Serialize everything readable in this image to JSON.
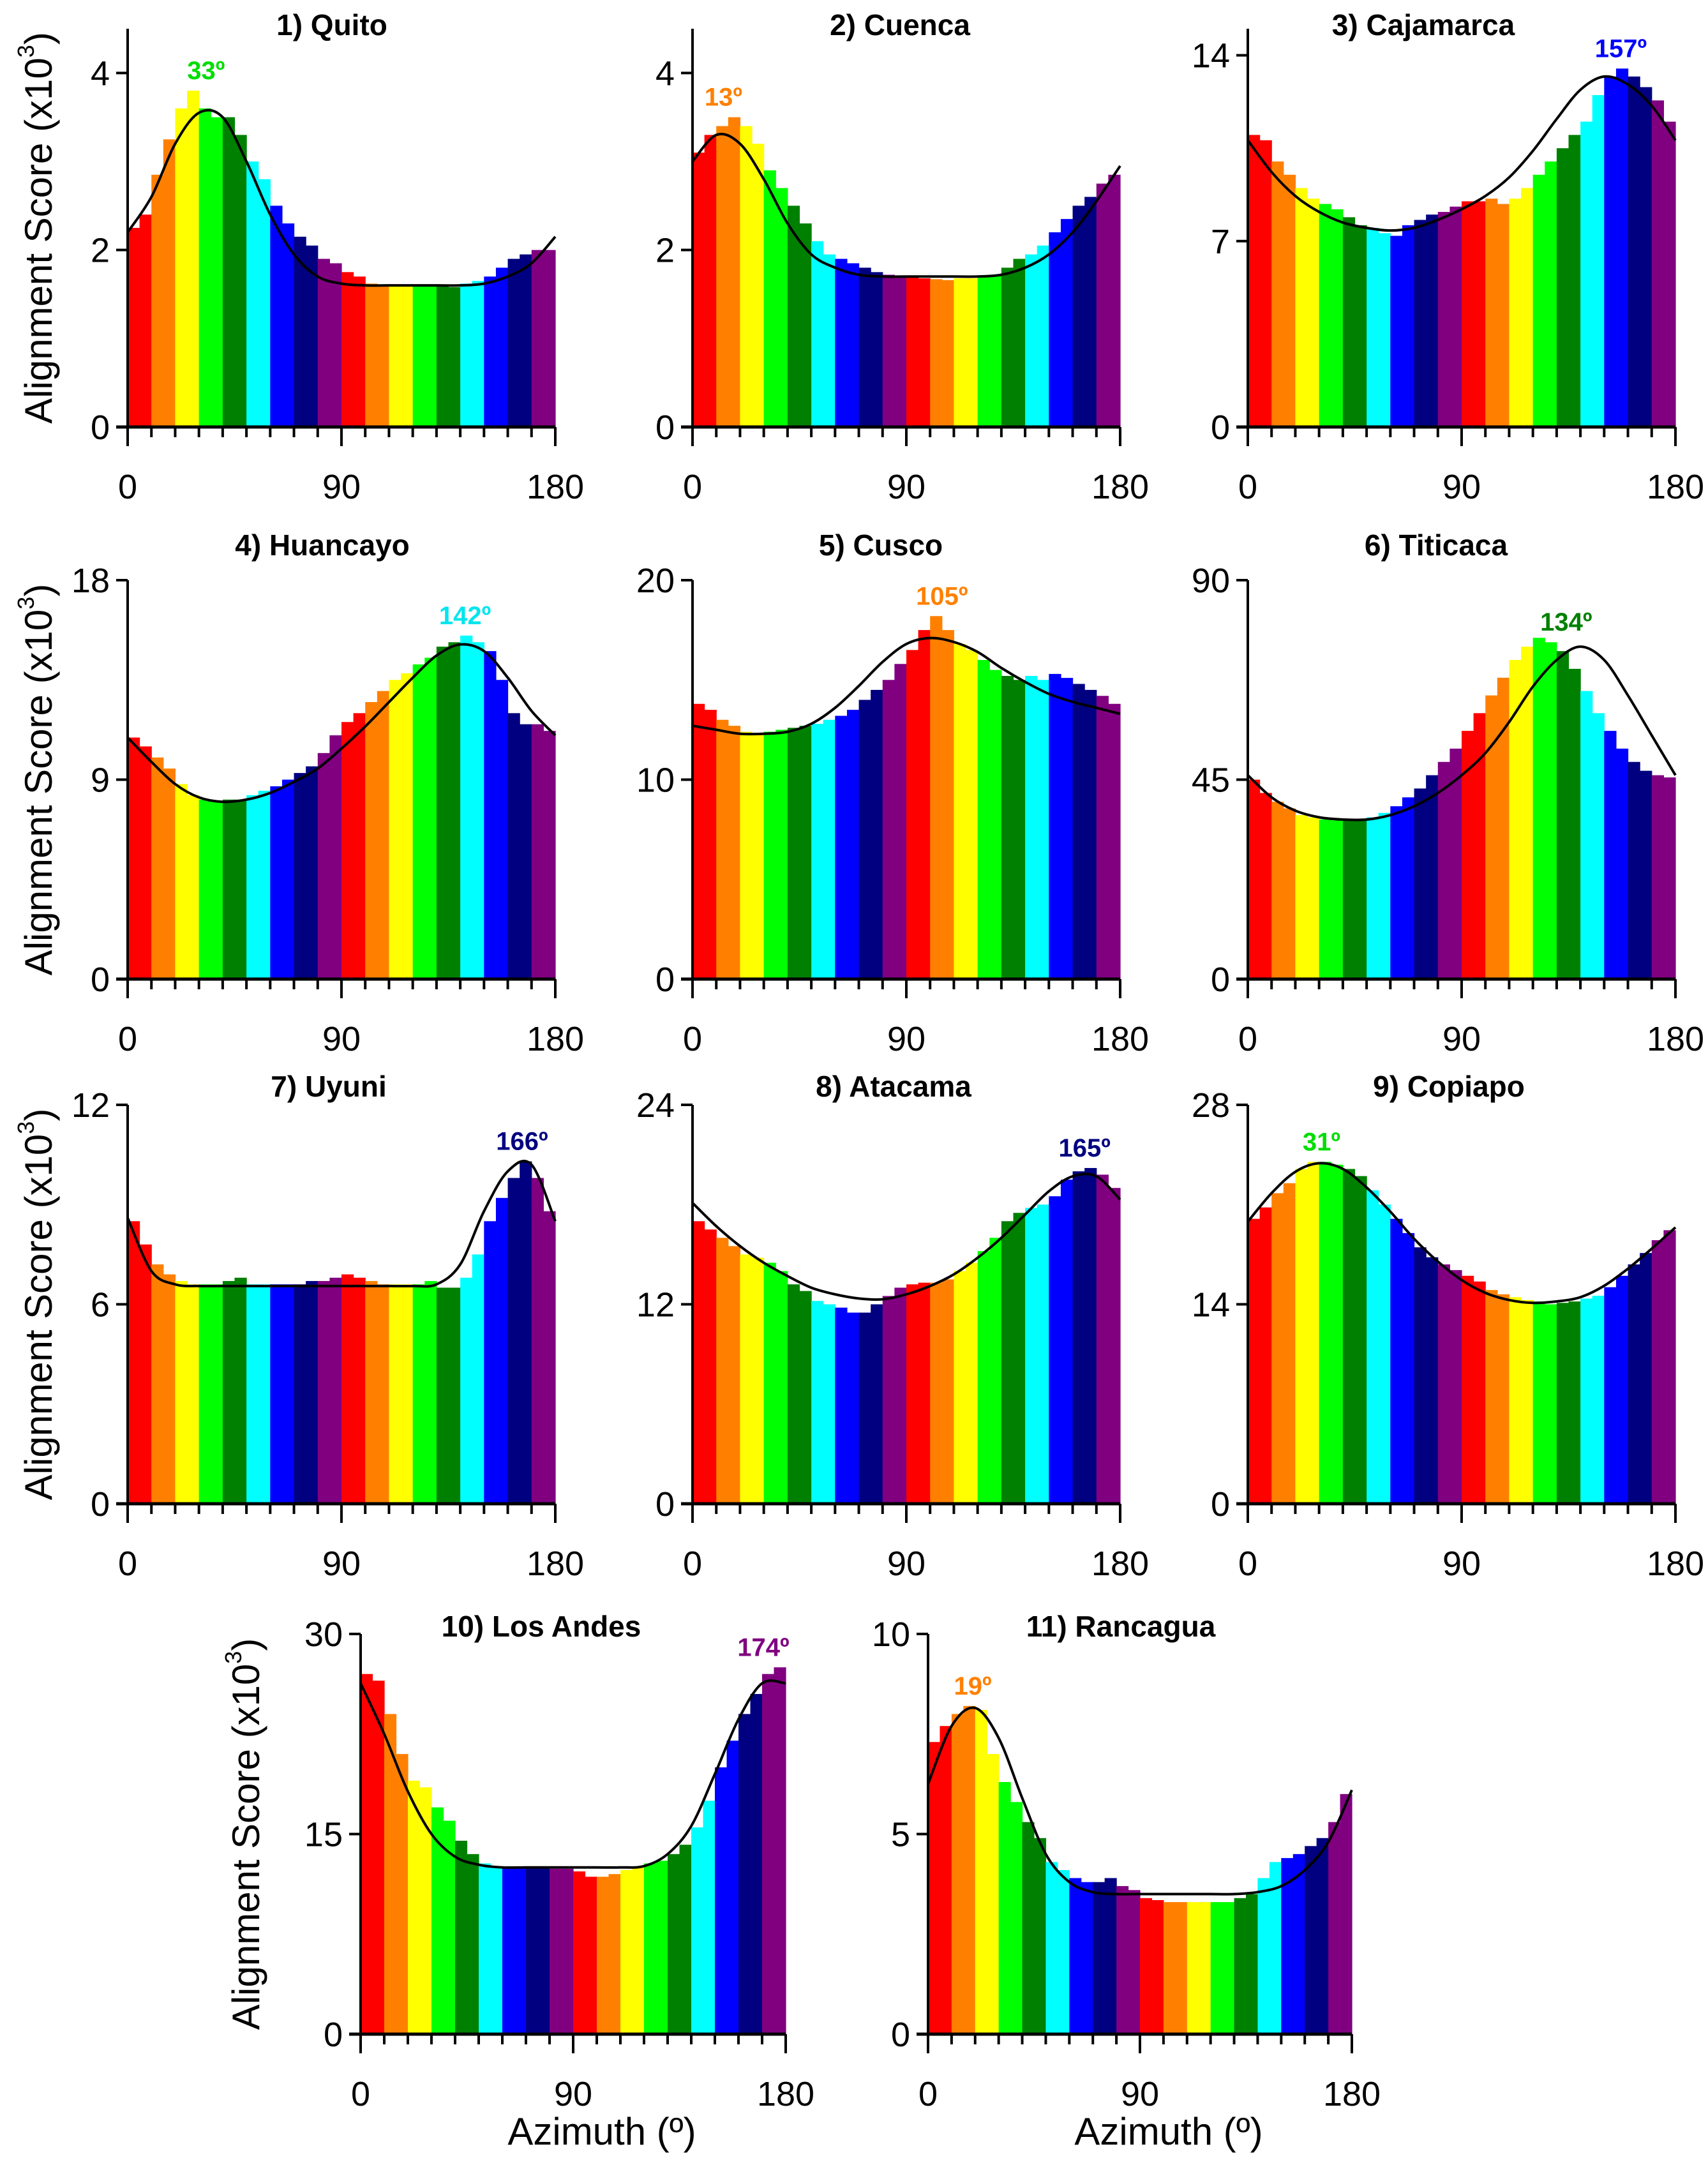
{
  "chart_data": {
    "type": "bar",
    "y_axis_title": {
      "prefix": "Alignment Score (x10",
      "exponent": "3",
      "suffix": ")"
    },
    "x_axis_title": "Azimuth (º)",
    "x_range": [
      0,
      180
    ],
    "x_ticks": [
      "0",
      "90",
      "180"
    ],
    "bin_width_deg": 5,
    "color_band_width_deg": 10,
    "band_colors": [
      "#ff0000",
      "#ff8000",
      "#ffff00",
      "#00ff00",
      "#008000",
      "#00ffff",
      "#0000ff",
      "#000080",
      "#800080"
    ],
    "fit_line_x": [
      0,
      10,
      20,
      30,
      40,
      50,
      60,
      70,
      80,
      90,
      100,
      110,
      120,
      130,
      140,
      150,
      160,
      170,
      180
    ],
    "panels": [
      {
        "title": "1) Quito",
        "peak_label": "33º",
        "peak_deg": 33,
        "peak_color": "#00dd00",
        "ylim": [
          0,
          4.5
        ],
        "yticks": [
          "0",
          "2",
          "4"
        ],
        "ytick_values": [
          0,
          2,
          4
        ],
        "bars": [
          2.25,
          2.4,
          2.85,
          3.25,
          3.6,
          3.8,
          3.6,
          3.5,
          3.5,
          3.3,
          3.0,
          2.8,
          2.5,
          2.3,
          2.15,
          2.05,
          1.9,
          1.85,
          1.75,
          1.7,
          1.62,
          1.6,
          1.6,
          1.6,
          1.6,
          1.6,
          1.6,
          1.58,
          1.62,
          1.65,
          1.7,
          1.8,
          1.9,
          1.95,
          2.0,
          2.0
        ],
        "fit": [
          2.2,
          2.6,
          3.2,
          3.55,
          3.5,
          3.0,
          2.4,
          1.95,
          1.7,
          1.62,
          1.6,
          1.6,
          1.6,
          1.6,
          1.6,
          1.62,
          1.7,
          1.85,
          2.15
        ]
      },
      {
        "title": "2) Cuenca",
        "peak_label": "13º",
        "peak_deg": 13,
        "peak_color": "#ff8000",
        "ylim": [
          0,
          4.5
        ],
        "yticks": [
          "0",
          "2",
          "4"
        ],
        "ytick_values": [
          0,
          2,
          4
        ],
        "bars": [
          3.1,
          3.3,
          3.4,
          3.5,
          3.4,
          3.2,
          2.9,
          2.7,
          2.5,
          2.3,
          2.1,
          1.95,
          1.9,
          1.85,
          1.8,
          1.75,
          1.72,
          1.7,
          1.7,
          1.68,
          1.67,
          1.66,
          1.68,
          1.68,
          1.7,
          1.72,
          1.8,
          1.9,
          1.95,
          2.05,
          2.2,
          2.35,
          2.5,
          2.6,
          2.75,
          2.85
        ],
        "fit": [
          3.0,
          3.3,
          3.2,
          2.8,
          2.3,
          1.95,
          1.8,
          1.72,
          1.7,
          1.7,
          1.7,
          1.7,
          1.7,
          1.72,
          1.8,
          1.95,
          2.2,
          2.55,
          2.95
        ]
      },
      {
        "title": "3) Cajamarca",
        "peak_label": "157º",
        "peak_deg": 157,
        "peak_color": "#0000ff",
        "ylim": [
          0,
          15
        ],
        "yticks": [
          "0",
          "7",
          "14"
        ],
        "ytick_values": [
          0,
          7,
          14
        ],
        "bars": [
          11,
          10.8,
          10,
          9.5,
          9.0,
          8.6,
          8.4,
          8.2,
          7.9,
          7.6,
          7.5,
          7.3,
          7.2,
          7.6,
          7.8,
          8.0,
          8.1,
          8.3,
          8.5,
          8.5,
          8.6,
          8.4,
          8.6,
          9.0,
          9.5,
          10.0,
          10.5,
          11,
          11.5,
          12.5,
          13.2,
          13.5,
          13.2,
          12.8,
          12.3,
          11.5
        ],
        "fit": [
          10.8,
          9.6,
          8.7,
          8.1,
          7.7,
          7.5,
          7.4,
          7.5,
          7.8,
          8.2,
          8.7,
          9.4,
          10.4,
          11.6,
          12.7,
          13.2,
          12.9,
          12.1,
          10.8
        ]
      },
      {
        "title": "4) Huancayo",
        "peak_label": "142º",
        "peak_deg": 142,
        "peak_color": "#00e5ee",
        "ylim": [
          0,
          18
        ],
        "yticks": [
          "0",
          "9",
          "18"
        ],
        "ytick_values": [
          0,
          9,
          18
        ],
        "bars": [
          10.9,
          10.5,
          10.0,
          9.5,
          8.8,
          8.3,
          8.1,
          8.0,
          8.1,
          8.1,
          8.3,
          8.5,
          8.7,
          9.0,
          9.3,
          9.6,
          10.2,
          11.0,
          11.6,
          12.0,
          12.5,
          13.0,
          13.5,
          13.8,
          14.2,
          14.5,
          15.0,
          15.2,
          15.5,
          15.2,
          14.8,
          13.5,
          12.0,
          11.5,
          11.5,
          11.2
        ],
        "fit": [
          10.9,
          9.8,
          8.8,
          8.2,
          8.0,
          8.1,
          8.4,
          8.9,
          9.5,
          10.4,
          11.4,
          12.5,
          13.6,
          14.6,
          15.1,
          14.8,
          13.6,
          12.1,
          11.0
        ]
      },
      {
        "title": "5) Cusco",
        "peak_label": "105º",
        "peak_deg": 105,
        "peak_color": "#ff8000",
        "ylim": [
          0,
          20
        ],
        "yticks": [
          "0",
          "10",
          "20"
        ],
        "ytick_values": [
          0,
          10,
          20
        ],
        "bars": [
          13.8,
          13.5,
          13.0,
          12.7,
          12.4,
          12.3,
          12.4,
          12.5,
          12.6,
          12.7,
          12.8,
          13.0,
          13.2,
          13.5,
          14.0,
          14.5,
          15.0,
          15.8,
          16.5,
          17.5,
          18.2,
          17.5,
          16.8,
          16.5,
          16.0,
          15.5,
          15.2,
          15.0,
          15.2,
          15.0,
          15.3,
          15.1,
          14.8,
          14.5,
          14.2,
          13.8
        ],
        "fit": [
          12.7,
          12.5,
          12.3,
          12.3,
          12.4,
          12.8,
          13.6,
          14.7,
          15.9,
          16.8,
          17.1,
          16.9,
          16.4,
          15.6,
          14.9,
          14.3,
          13.9,
          13.6,
          13.3
        ]
      },
      {
        "title": "6) Titicaca",
        "peak_label": "134º",
        "peak_deg": 134,
        "peak_color": "#008000",
        "ylim": [
          0,
          90
        ],
        "yticks": [
          "0",
          "45",
          "90"
        ],
        "ytick_values": [
          0,
          45,
          90
        ],
        "bars": [
          45,
          42,
          40,
          38.5,
          37,
          36.5,
          36,
          35.8,
          35.8,
          36,
          36.5,
          37.5,
          39,
          41,
          43,
          46,
          49,
          52,
          56,
          60,
          64,
          68,
          72,
          75,
          77,
          76,
          74,
          70,
          65,
          60,
          56,
          52,
          49,
          47,
          46,
          45.5
        ],
        "fit": [
          46,
          41,
          38,
          36.5,
          36,
          36,
          37,
          39,
          42,
          46,
          51,
          58,
          66,
          72,
          75,
          72,
          64,
          55,
          46
        ]
      },
      {
        "title": "7) Uyuni",
        "peak_label": "166º",
        "peak_deg": 166,
        "peak_color": "#000080",
        "ylim": [
          0,
          12
        ],
        "yticks": [
          "0",
          "6",
          "12"
        ],
        "ytick_values": [
          0,
          6,
          12
        ],
        "bars": [
          8.5,
          7.8,
          7.2,
          6.9,
          6.7,
          6.6,
          6.6,
          6.6,
          6.7,
          6.8,
          6.6,
          6.6,
          6.6,
          6.6,
          6.6,
          6.7,
          6.7,
          6.8,
          6.9,
          6.8,
          6.7,
          6.6,
          6.6,
          6.6,
          6.6,
          6.7,
          6.5,
          6.5,
          6.8,
          7.5,
          8.5,
          9.2,
          9.8,
          10.3,
          9.8,
          8.8
        ],
        "fit": [
          8.6,
          7.0,
          6.6,
          6.55,
          6.55,
          6.55,
          6.55,
          6.55,
          6.55,
          6.55,
          6.55,
          6.55,
          6.55,
          6.6,
          7.2,
          8.8,
          10.0,
          10.2,
          8.5
        ]
      },
      {
        "title": "8) Atacama",
        "peak_label": "165º",
        "peak_deg": 165,
        "peak_color": "#000080",
        "ylim": [
          0,
          24
        ],
        "yticks": [
          "0",
          "12",
          "24"
        ],
        "ytick_values": [
          0,
          12,
          24
        ],
        "bars": [
          17,
          16.5,
          16,
          15.5,
          15,
          14.8,
          14.5,
          14,
          13.2,
          12.8,
          12.2,
          12,
          11.8,
          11.5,
          11.5,
          12,
          12.5,
          13,
          13.2,
          13.3,
          13.3,
          13.5,
          14,
          14.5,
          15.2,
          16,
          17,
          17.5,
          17.8,
          18,
          18.5,
          19.5,
          20,
          20.2,
          19.8,
          19
        ],
        "fit": [
          18.1,
          16.7,
          15.5,
          14.5,
          13.7,
          13.0,
          12.6,
          12.35,
          12.3,
          12.6,
          13.1,
          13.8,
          14.8,
          16.0,
          17.4,
          18.8,
          19.7,
          19.7,
          18.3
        ]
      },
      {
        "title": "9) Copiapo",
        "peak_label": "31º",
        "peak_deg": 31,
        "peak_color": "#00dd00",
        "ylim": [
          0,
          28
        ],
        "yticks": [
          "0",
          "14",
          "28"
        ],
        "ytick_values": [
          0,
          14,
          28
        ],
        "bars": [
          20,
          20.8,
          21.8,
          22.5,
          23.5,
          24,
          24,
          23.8,
          23.5,
          23,
          22,
          21,
          20,
          19,
          18,
          17.3,
          16.8,
          16.4,
          16.0,
          15.6,
          15,
          14.7,
          14.5,
          14.3,
          14.2,
          14.0,
          14.1,
          14.2,
          14.4,
          14.6,
          15.2,
          16,
          16.8,
          17.6,
          18.5,
          19.2
        ],
        "fit": [
          19.8,
          21.8,
          23.3,
          23.9,
          23.5,
          22.2,
          20.5,
          18.6,
          17.0,
          15.7,
          14.8,
          14.3,
          14.1,
          14.2,
          14.5,
          15.3,
          16.5,
          17.9,
          19.4
        ]
      },
      {
        "title": "10) Los Andes",
        "peak_label": "174º",
        "peak_deg": 174,
        "peak_color": "#800080",
        "ylim": [
          0,
          30
        ],
        "yticks": [
          "0",
          "15",
          "30"
        ],
        "ytick_values": [
          0,
          15,
          30
        ],
        "bars": [
          27,
          26.5,
          24,
          21,
          19,
          18.5,
          17,
          16,
          14.5,
          13.5,
          12.8,
          12.5,
          12.5,
          12.5,
          12.5,
          12.5,
          12.4,
          12.4,
          12.2,
          11.8,
          11.8,
          12,
          12.3,
          12.5,
          12.8,
          13,
          13.5,
          14.2,
          15.5,
          17.5,
          20,
          22,
          24,
          25.5,
          27,
          27.5
        ],
        "fit": [
          26.3,
          22.5,
          18.2,
          15.0,
          13.3,
          12.7,
          12.5,
          12.5,
          12.5,
          12.5,
          12.5,
          12.5,
          12.6,
          13.5,
          15.6,
          19.5,
          23.6,
          26.3,
          26.3
        ]
      },
      {
        "title": "11) Rancagua",
        "peak_label": "19º",
        "peak_deg": 19,
        "peak_color": "#ff8000",
        "ylim": [
          0,
          10
        ],
        "yticks": [
          "0",
          "5",
          "10"
        ],
        "ytick_values": [
          0,
          5,
          10
        ],
        "bars": [
          7.3,
          7.7,
          8.0,
          8.2,
          8.1,
          7.0,
          6.3,
          5.8,
          5.3,
          4.9,
          4.3,
          4.1,
          3.9,
          3.8,
          3.8,
          3.9,
          3.7,
          3.6,
          3.4,
          3.35,
          3.3,
          3.3,
          3.3,
          3.3,
          3.3,
          3.3,
          3.4,
          3.5,
          3.9,
          4.3,
          4.4,
          4.5,
          4.7,
          4.9,
          5.3,
          6.0
        ],
        "fit": [
          6.25,
          7.7,
          8.15,
          7.4,
          5.9,
          4.5,
          3.8,
          3.55,
          3.5,
          3.5,
          3.5,
          3.5,
          3.5,
          3.5,
          3.55,
          3.7,
          4.1,
          4.8,
          6.1
        ]
      }
    ]
  }
}
